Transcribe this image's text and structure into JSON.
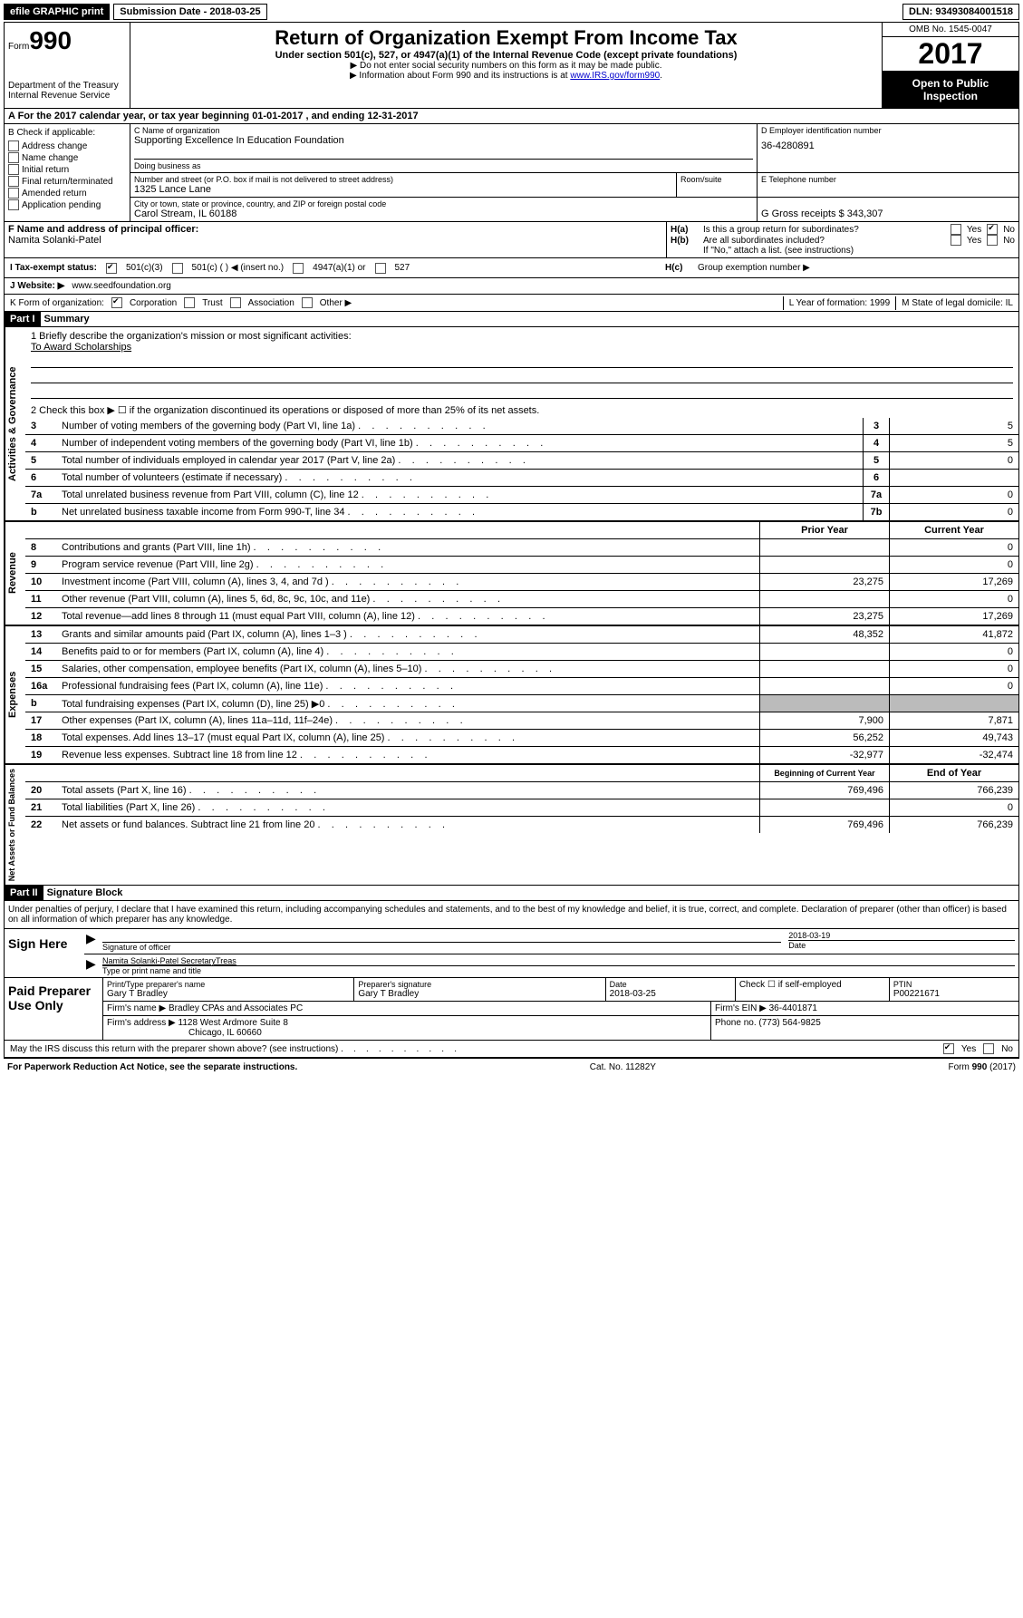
{
  "topbar": {
    "efile": "efile GRAPHIC print",
    "submission_label": "Submission Date - 2018-03-25",
    "dln_label": "DLN: 93493084001518"
  },
  "header": {
    "form_word": "Form",
    "form_num": "990",
    "dept1": "Department of the Treasury",
    "dept2": "Internal Revenue Service",
    "title": "Return of Organization Exempt From Income Tax",
    "sub": "Under section 501(c), 527, or 4947(a)(1) of the Internal Revenue Code (except private foundations)",
    "arrow1": "▶ Do not enter social security numbers on this form as it may be made public.",
    "arrow2_pre": "▶ Information about Form 990 and its instructions is at ",
    "arrow2_link": "www.IRS.gov/form990",
    "omb": "OMB No. 1545-0047",
    "year": "2017",
    "open1": "Open to Public",
    "open2": "Inspection"
  },
  "sectionA": "A  For the 2017 calendar year, or tax year beginning 01-01-2017   , and ending 12-31-2017",
  "boxB": {
    "title": "B Check if applicable:",
    "items": [
      "Address change",
      "Name change",
      "Initial return",
      "Final return/terminated",
      "Amended return",
      "Application pending"
    ]
  },
  "boxC": {
    "name_label": "C Name of organization",
    "name": "Supporting Excellence In Education Foundation",
    "dba_label": "Doing business as",
    "addr_label": "Number and street (or P.O. box if mail is not delivered to street address)",
    "room_label": "Room/suite",
    "addr": "1325 Lance Lane",
    "city_label": "City or town, state or province, country, and ZIP or foreign postal code",
    "city": "Carol Stream, IL  60188"
  },
  "boxD": {
    "label": "D Employer identification number",
    "val": "36-4280891"
  },
  "boxE": {
    "label": "E Telephone number",
    "val": ""
  },
  "boxG": {
    "label": "G Gross receipts $ 343,307"
  },
  "boxF": {
    "label": "F  Name and address of principal officer:",
    "name": "Namita Solanki-Patel"
  },
  "boxH": {
    "a_label": "H(a)",
    "a_text": "Is this a group return for subordinates?",
    "b_label": "H(b)",
    "b_text": "Are all subordinates included?",
    "note": "If \"No,\" attach a list. (see instructions)",
    "c_label": "H(c)",
    "c_text": "Group exemption number ▶",
    "yes": "Yes",
    "no": "No"
  },
  "taxI": {
    "label": "I  Tax-exempt status:",
    "opts": [
      "501(c)(3)",
      "501(c) (   ) ◀ (insert no.)",
      "4947(a)(1) or",
      "527"
    ]
  },
  "website": {
    "label": "J  Website: ▶",
    "val": "www.seedfoundation.org"
  },
  "kline": {
    "label": "K Form of organization:",
    "opts": [
      "Corporation",
      "Trust",
      "Association",
      "Other ▶"
    ],
    "l": "L Year of formation: 1999",
    "m": "M State of legal domicile: IL"
  },
  "part1": {
    "header": "Part I",
    "title": "Summary",
    "mission_label": "1   Briefly describe the organization's mission or most significant activities:",
    "mission": "To Award Scholarships",
    "line2": "2   Check this box ▶  ☐  if the organization discontinued its operations or disposed of more than 25% of its net assets.",
    "gov_label": "Activities & Governance",
    "rev_label": "Revenue",
    "exp_label": "Expenses",
    "net_label": "Net Assets or Fund Balances",
    "cols": {
      "prior": "Prior Year",
      "current": "Current Year",
      "boy": "Beginning of Current Year",
      "eoy": "End of Year"
    },
    "lines_gov": [
      {
        "n": "3",
        "t": "Number of voting members of the governing body (Part VI, line 1a)",
        "box": "3",
        "v": "5"
      },
      {
        "n": "4",
        "t": "Number of independent voting members of the governing body (Part VI, line 1b)",
        "box": "4",
        "v": "5"
      },
      {
        "n": "5",
        "t": "Total number of individuals employed in calendar year 2017 (Part V, line 2a)",
        "box": "5",
        "v": "0"
      },
      {
        "n": "6",
        "t": "Total number of volunteers (estimate if necessary)",
        "box": "6",
        "v": ""
      },
      {
        "n": "7a",
        "t": "Total unrelated business revenue from Part VIII, column (C), line 12",
        "box": "7a",
        "v": "0"
      },
      {
        "n": "b",
        "t": "Net unrelated business taxable income from Form 990-T, line 34",
        "box": "7b",
        "v": "0"
      }
    ],
    "lines_rev": [
      {
        "n": "8",
        "t": "Contributions and grants (Part VIII, line 1h)",
        "p": "",
        "c": "0"
      },
      {
        "n": "9",
        "t": "Program service revenue (Part VIII, line 2g)",
        "p": "",
        "c": "0"
      },
      {
        "n": "10",
        "t": "Investment income (Part VIII, column (A), lines 3, 4, and 7d )",
        "p": "23,275",
        "c": "17,269"
      },
      {
        "n": "11",
        "t": "Other revenue (Part VIII, column (A), lines 5, 6d, 8c, 9c, 10c, and 11e)",
        "p": "",
        "c": "0"
      },
      {
        "n": "12",
        "t": "Total revenue—add lines 8 through 11 (must equal Part VIII, column (A), line 12)",
        "p": "23,275",
        "c": "17,269"
      }
    ],
    "lines_exp": [
      {
        "n": "13",
        "t": "Grants and similar amounts paid (Part IX, column (A), lines 1–3 )",
        "p": "48,352",
        "c": "41,872"
      },
      {
        "n": "14",
        "t": "Benefits paid to or for members (Part IX, column (A), line 4)",
        "p": "",
        "c": "0"
      },
      {
        "n": "15",
        "t": "Salaries, other compensation, employee benefits (Part IX, column (A), lines 5–10)",
        "p": "",
        "c": "0"
      },
      {
        "n": "16a",
        "t": "Professional fundraising fees (Part IX, column (A), line 11e)",
        "p": "",
        "c": "0"
      },
      {
        "n": "b",
        "t": "Total fundraising expenses (Part IX, column (D), line 25) ▶0",
        "p": "grey",
        "c": "grey"
      },
      {
        "n": "17",
        "t": "Other expenses (Part IX, column (A), lines 11a–11d, 11f–24e)",
        "p": "7,900",
        "c": "7,871"
      },
      {
        "n": "18",
        "t": "Total expenses. Add lines 13–17 (must equal Part IX, column (A), line 25)",
        "p": "56,252",
        "c": "49,743"
      },
      {
        "n": "19",
        "t": "Revenue less expenses. Subtract line 18 from line 12",
        "p": "-32,977",
        "c": "-32,474"
      }
    ],
    "lines_net": [
      {
        "n": "20",
        "t": "Total assets (Part X, line 16)",
        "p": "769,496",
        "c": "766,239"
      },
      {
        "n": "21",
        "t": "Total liabilities (Part X, line 26)",
        "p": "",
        "c": "0"
      },
      {
        "n": "22",
        "t": "Net assets or fund balances. Subtract line 21 from line 20",
        "p": "769,496",
        "c": "766,239"
      }
    ]
  },
  "part2": {
    "header": "Part II",
    "title": "Signature Block",
    "perjury": "Under penalties of perjury, I declare that I have examined this return, including accompanying schedules and statements, and to the best of my knowledge and belief, it is true, correct, and complete. Declaration of preparer (other than officer) is based on all information of which preparer has any knowledge.",
    "sign_here": "Sign Here",
    "sig_officer": "Signature of officer",
    "sig_date": "2018-03-19",
    "date_label": "Date",
    "officer_name": "Namita Solanki-Patel SecretaryTreas",
    "name_label": "Type or print name and title",
    "paid": "Paid Preparer Use Only",
    "prep_name_label": "Print/Type preparer's name",
    "prep_name": "Gary T Bradley",
    "prep_sig_label": "Preparer's signature",
    "prep_sig": "Gary T Bradley",
    "prep_date_label": "Date",
    "prep_date": "2018-03-25",
    "self_emp": "Check ☐ if self-employed",
    "ptin_label": "PTIN",
    "ptin": "P00221671",
    "firm_name_label": "Firm's name      ▶",
    "firm_name": "Bradley CPAs and Associates PC",
    "firm_ein_label": "Firm's EIN ▶",
    "firm_ein": "36-4401871",
    "firm_addr_label": "Firm's address ▶",
    "firm_addr1": "1128 West Ardmore Suite 8",
    "firm_addr2": "Chicago, IL  60660",
    "phone_label": "Phone no.",
    "phone": "(773) 564-9825",
    "discuss": "May the IRS discuss this return with the preparer shown above? (see instructions)",
    "yes": "Yes",
    "no": "No"
  },
  "footer": {
    "left": "For Paperwork Reduction Act Notice, see the separate instructions.",
    "mid": "Cat. No. 11282Y",
    "right": "Form 990 (2017)"
  }
}
